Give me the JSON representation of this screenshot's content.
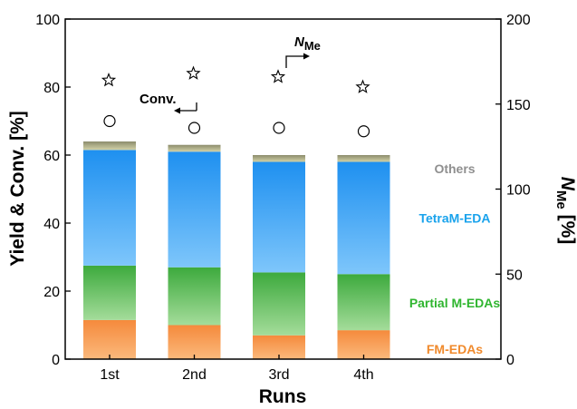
{
  "chart_data": {
    "type": "bar",
    "stacked": true,
    "categories": [
      "1st",
      "2nd",
      "3rd",
      "4th"
    ],
    "xlabel": "Runs",
    "ylabel": "Yield & Conv. [%]",
    "ylim": [
      0,
      100
    ],
    "yticks": [
      0,
      20,
      40,
      60,
      80,
      100
    ],
    "y2label_main": "N",
    "y2label_sub": "Me",
    "y2label_unit": " [%]",
    "y2lim": [
      0,
      200
    ],
    "y2ticks": [
      0,
      50,
      100,
      150,
      200
    ],
    "grid": false,
    "series": [
      {
        "name": "FM-EDAs",
        "values": [
          11.5,
          10.0,
          7.0,
          8.5
        ],
        "color_top": "#f58a3c",
        "color_bottom": "#fbb97c",
        "label_color": "#f08a2c"
      },
      {
        "name": "Partial M-EDAs",
        "values": [
          16.0,
          17.0,
          18.5,
          16.5
        ],
        "color_top": "#3daa3d",
        "color_bottom": "#a4dc9a",
        "label_color": "#2fb52f"
      },
      {
        "name": "TetraM-EDA",
        "values": [
          34.0,
          34.0,
          32.5,
          33.0
        ],
        "color_top": "#1e90f0",
        "color_bottom": "#7ec6fb",
        "label_color": "#1aa3ec"
      },
      {
        "name": "Others",
        "values": [
          2.5,
          2.0,
          2.0,
          2.0
        ],
        "color_top": "#8c8c6c",
        "color_bottom": "#d2d2a8",
        "label_color": "#8f8f8f"
      }
    ],
    "conversion": {
      "name": "Conv.",
      "axis": "left",
      "marker": "circle",
      "values": [
        70,
        68,
        68,
        67
      ]
    },
    "nme": {
      "name_main": "N",
      "name_sub": "Me",
      "axis": "right",
      "marker": "star",
      "values": [
        164,
        168,
        166,
        160
      ]
    }
  }
}
